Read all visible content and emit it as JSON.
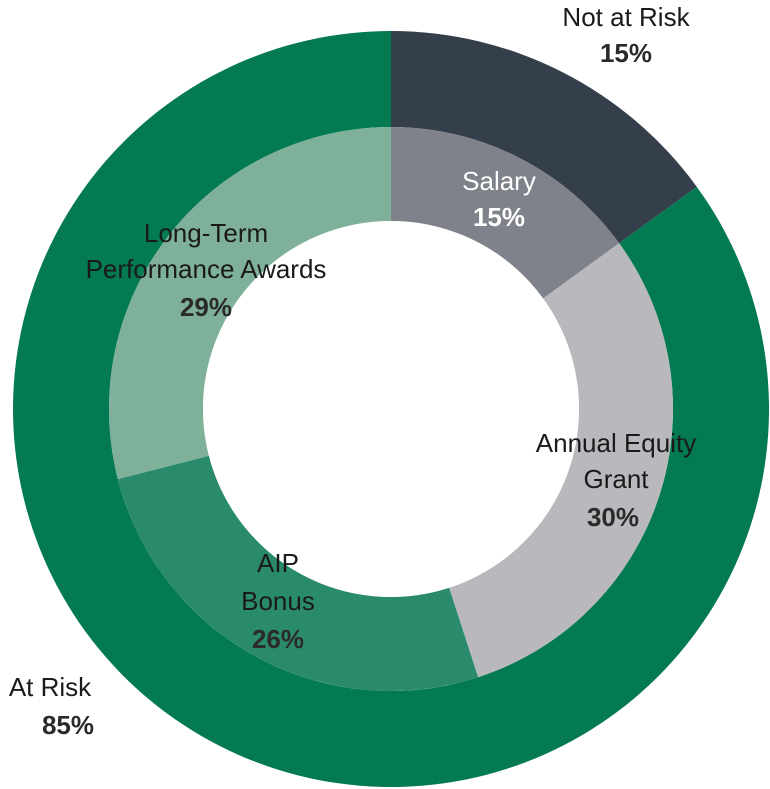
{
  "chart_data": {
    "type": "pie",
    "variant": "nested-donut",
    "title": "",
    "outer_ring": {
      "slices": [
        {
          "label": "Not at Risk",
          "value": 15,
          "value_label": "15%",
          "color": "#343f4b"
        },
        {
          "label": "At Risk",
          "value": 85,
          "value_label": "85%",
          "color": "#037a52"
        }
      ]
    },
    "inner_ring": {
      "slices": [
        {
          "label": "Salary",
          "value": 15,
          "value_label": "15%",
          "color": "#7f828b"
        },
        {
          "label": "Annual Equity Grant",
          "value": 30,
          "value_label": "30%",
          "color": "#b8b8bd"
        },
        {
          "label": "AIP Bonus",
          "value": 26,
          "value_label": "26%",
          "color": "#2a8a6c"
        },
        {
          "label": "Long-Term Performance Awards",
          "value": 29,
          "value_label": "29%",
          "color": "#7fb19a"
        }
      ]
    }
  }
}
